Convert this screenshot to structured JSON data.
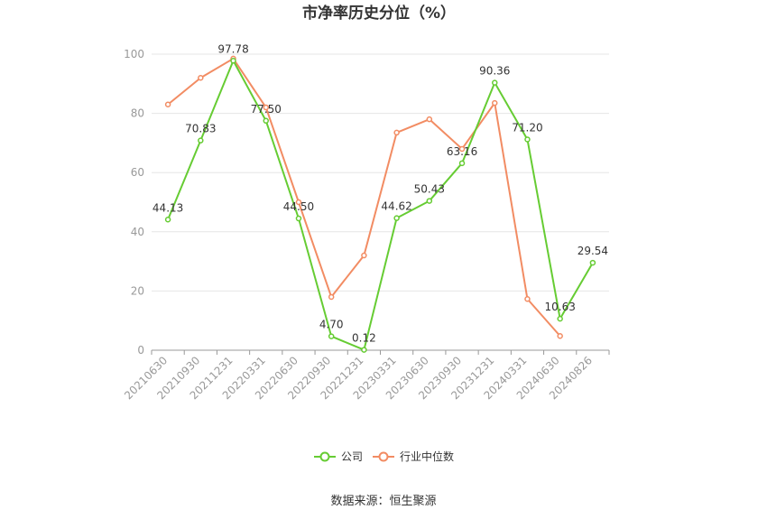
{
  "colors": {
    "company": "#66cc33",
    "industry": "#f28c63",
    "grid": "#e6e6e6",
    "axis": "#999999",
    "text": "#333333"
  },
  "footer": {
    "source": "数据来源：恒生聚源"
  },
  "chart_data": {
    "type": "line",
    "title": "市净率历史分位（%）",
    "xlabel": "",
    "ylabel": "",
    "ylim": [
      0,
      100
    ],
    "yticks": [
      0,
      20,
      40,
      60,
      80,
      100
    ],
    "grid": true,
    "legend_position": "bottom-center",
    "categories": [
      "20210630",
      "20210930",
      "20211231",
      "20220331",
      "20220630",
      "20220930",
      "20221231",
      "20230331",
      "20230630",
      "20230930",
      "20231231",
      "20240331",
      "20240630",
      "20240826"
    ],
    "series": [
      {
        "name": "公司",
        "values": [
          44.13,
          70.83,
          97.78,
          77.5,
          44.5,
          4.7,
          0.12,
          44.62,
          50.43,
          63.16,
          90.36,
          71.2,
          10.63,
          29.54
        ],
        "labels": [
          "44.13",
          "70.83",
          "97.78",
          "77.50",
          "44.50",
          "4.70",
          "0.12",
          "44.62",
          "50.43",
          "63.16",
          "90.36",
          "71.20",
          "10.63",
          "29.54"
        ]
      },
      {
        "name": "行业中位数",
        "values": [
          83,
          92,
          98.5,
          82,
          50,
          18,
          32,
          73.5,
          78,
          68,
          83.5,
          17.3,
          4.8,
          null
        ]
      }
    ]
  }
}
